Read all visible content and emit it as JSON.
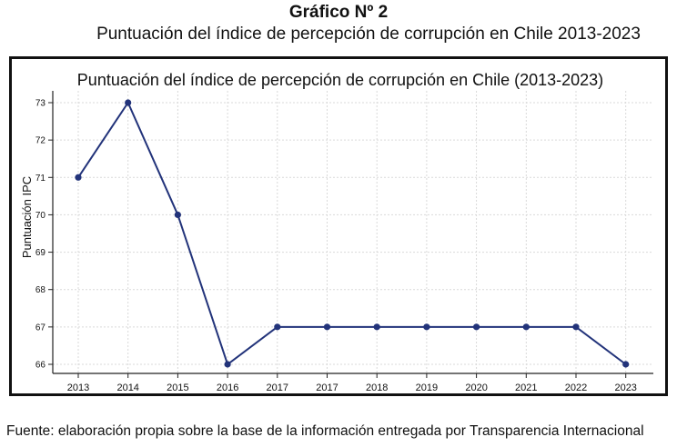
{
  "header": {
    "figure_number": "Gráfico Nº 2",
    "figure_title": "Puntuación del índice de percepción de corrupción en Chile 2013-2023"
  },
  "footer": {
    "source": "Fuente: elaboración propia sobre la base de la información entregada por Transparencia Internacional"
  },
  "chart_data": {
    "type": "line",
    "title": "Puntuación del índice de percepción de corrupción en Chile  (2013-2023)",
    "xlabel": "",
    "ylabel": "Puntuación IPC",
    "categories": [
      "2013",
      "2014",
      "2015",
      "2016",
      "2017",
      "2017",
      "2018",
      "2019",
      "2020",
      "2021",
      "2022",
      "2023"
    ],
    "values": [
      71,
      73,
      70,
      66,
      67,
      67,
      67,
      67,
      67,
      67,
      67,
      66
    ],
    "ylim": [
      66,
      73
    ],
    "yticks": [
      66,
      67,
      68,
      69,
      70,
      71,
      72,
      73
    ],
    "grid": true,
    "line_color": "#22337a",
    "grid_color": "#d9d9d9"
  }
}
